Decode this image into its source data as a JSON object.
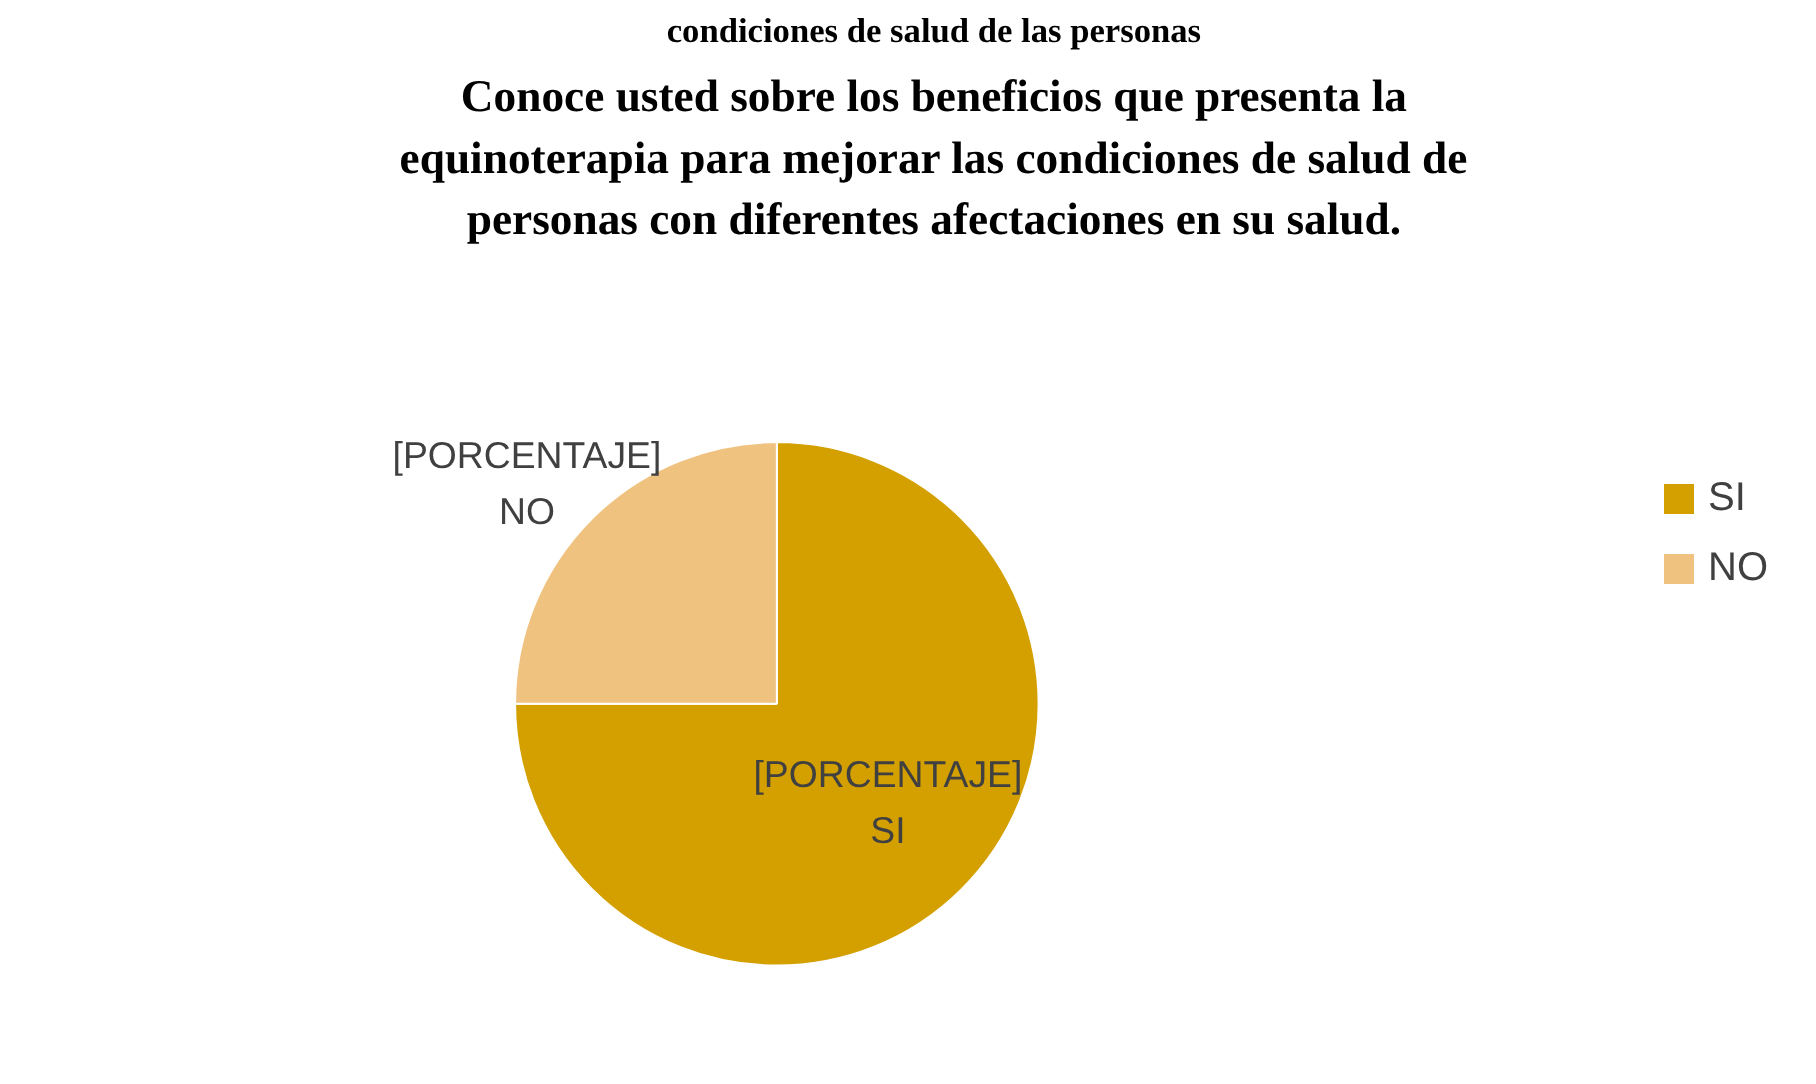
{
  "chart_data": {
    "type": "pie",
    "title": "Conoce usted sobre los beneficios que presenta la\nequinoterapia para mejorar las condiciones de salud de\npersonas con diferentes afectaciones en su salud.",
    "annotations": [
      "condiciones de salud de las personas"
    ],
    "categories": [
      "SI",
      "NO"
    ],
    "values": [
      75,
      25
    ],
    "colors": [
      "#d4a000",
      "#f0c27f"
    ],
    "value_labels": [
      "[PORCENTAJE]",
      "[PORCENTAJE]"
    ],
    "legend": "right"
  }
}
